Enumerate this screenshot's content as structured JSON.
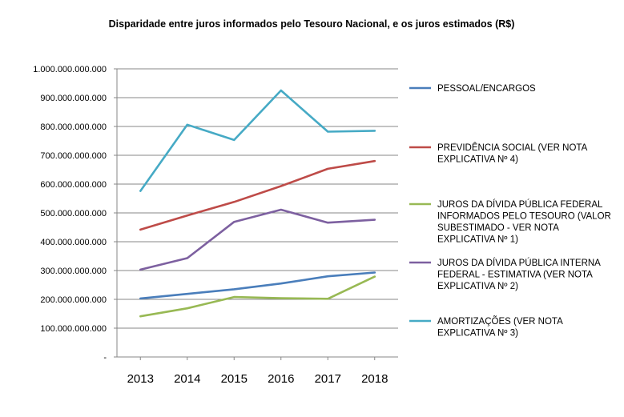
{
  "chart_data": {
    "type": "line",
    "title": "Disparidade entre juros informados pelo Tesouro Nacional, e os juros estimados (R$)",
    "xlabel": "",
    "ylabel": "",
    "categories": [
      "2013",
      "2014",
      "2015",
      "2016",
      "2017",
      "2018"
    ],
    "ylim": [
      0,
      1000000000000
    ],
    "yticks": [
      {
        "value": 0,
        "label": "-"
      },
      {
        "value": 100000000000,
        "label": "100.000.000.000"
      },
      {
        "value": 200000000000,
        "label": "200.000.000.000"
      },
      {
        "value": 300000000000,
        "label": "300.000.000.000"
      },
      {
        "value": 400000000000,
        "label": "400.000.000.000"
      },
      {
        "value": 500000000000,
        "label": "500.000.000.000"
      },
      {
        "value": 600000000000,
        "label": "600.000.000.000"
      },
      {
        "value": 700000000000,
        "label": "700.000.000.000"
      },
      {
        "value": 800000000000,
        "label": "800.000.000.000"
      },
      {
        "value": 900000000000,
        "label": "900.000.000.000"
      },
      {
        "value": 1000000000000,
        "label": "1.000.000.000.000"
      }
    ],
    "grid": true,
    "legend_position": "right",
    "series": [
      {
        "name": "PESSOAL/ENCARGOS",
        "label_lines": [
          "PESSOAL/ENCARGOS"
        ],
        "color": "#4a7ebb",
        "values": [
          203000000000,
          219000000000,
          235000000000,
          255000000000,
          280000000000,
          293000000000
        ]
      },
      {
        "name": "PREVIDÊNCIA SOCIAL (VER NOTA EXPLICATIVA Nº 4)",
        "label_lines": [
          "PREVIDÊNCIA SOCIAL (VER NOTA",
          "EXPLICATIVA Nº 4)"
        ],
        "color": "#be4b48",
        "values": [
          442000000000,
          491000000000,
          538000000000,
          593000000000,
          653000000000,
          680000000000
        ]
      },
      {
        "name": "JUROS DA DÍVIDA PÚBLICA FEDERAL INFORMADOS PELO TESOURO (VALOR SUBESTIMADO - VER NOTA EXPLICATIVA Nº 1)",
        "label_lines": [
          "JUROS DA DÍVIDA PÚBLICA FEDERAL",
          "INFORMADOS PELO TESOURO (VALOR",
          "SUBESTIMADO - VER NOTA",
          "EXPLICATIVA Nº 1)"
        ],
        "color": "#98b954",
        "values": [
          141000000000,
          169000000000,
          208000000000,
          204000000000,
          202000000000,
          279000000000
        ]
      },
      {
        "name": "JUROS DA DÍVIDA PÚBLICA INTERNA FEDERAL - ESTIMATIVA (VER NOTA EXPLICATIVA Nº 2)",
        "label_lines": [
          "JUROS DA DÍVIDA PÚBLICA INTERNA",
          "FEDERAL - ESTIMATIVA (VER NOTA",
          "EXPLICATIVA Nº 2)"
        ],
        "color": "#7d60a0",
        "values": [
          303000000000,
          343000000000,
          469000000000,
          511000000000,
          466000000000,
          476000000000
        ]
      },
      {
        "name": "AMORTIZAÇÕES (VER NOTA EXPLICATIVA Nº 3)",
        "label_lines": [
          "AMORTIZAÇÕES (VER NOTA",
          "EXPLICATIVA Nº 3)"
        ],
        "color": "#46aac5",
        "values": [
          576000000000,
          806000000000,
          753000000000,
          925000000000,
          782000000000,
          785000000000
        ]
      }
    ]
  }
}
